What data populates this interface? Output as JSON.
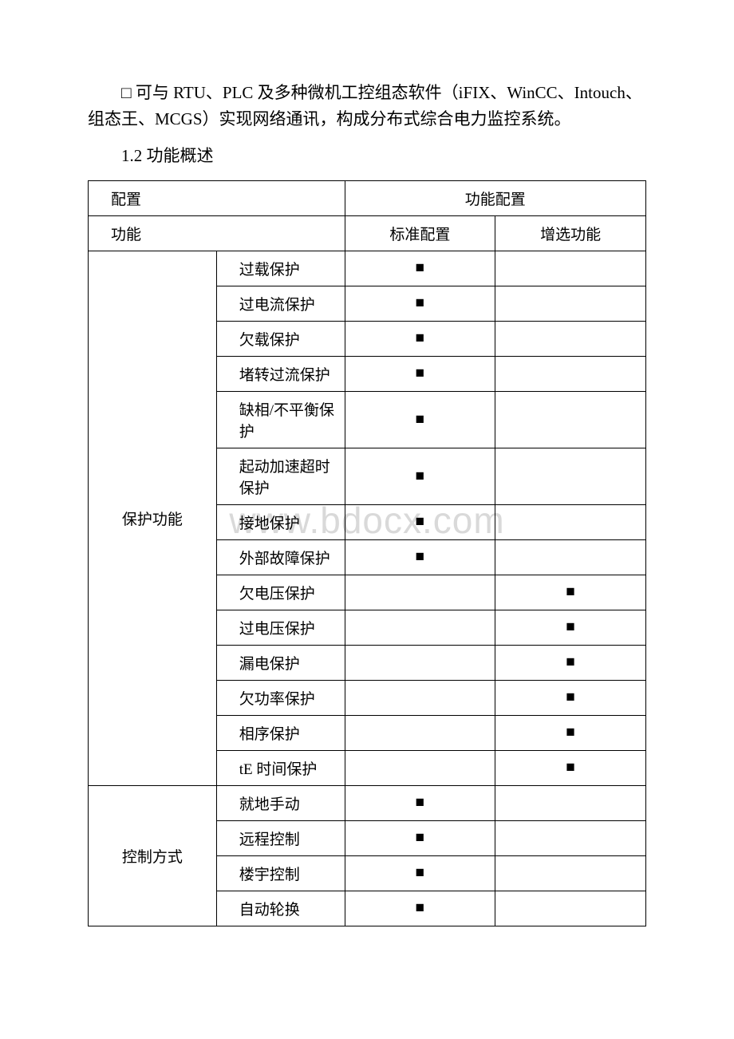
{
  "paragraph1": "□ 可与 RTU、PLC 及多种微机工控组态软件（iFIX、WinCC、Intouch、组态王、MCGS）实现网络通讯，构成分布式综合电力监控系统。",
  "sectionHeading": "1.2 功能概述",
  "watermark": "www.bdocx.com",
  "marker": "■",
  "table": {
    "header": {
      "configLabel": "配置",
      "funcConfig": "功能配置",
      "funcLabel": "功能",
      "standard": "标准配置",
      "optional": "增选功能"
    },
    "groups": [
      {
        "name": "保护功能",
        "rows": [
          {
            "feature": "过载保护",
            "standard": true,
            "optional": false
          },
          {
            "feature": "过电流保护",
            "standard": true,
            "optional": false
          },
          {
            "feature": "欠载保护",
            "standard": true,
            "optional": false
          },
          {
            "feature": "堵转过流保护",
            "standard": true,
            "optional": false
          },
          {
            "feature": "缺相/不平衡保护",
            "standard": true,
            "optional": false
          },
          {
            "feature": "起动加速超时保护",
            "standard": true,
            "optional": false
          },
          {
            "feature": "接地保护",
            "standard": true,
            "optional": false
          },
          {
            "feature": "外部故障保护",
            "standard": true,
            "optional": false
          },
          {
            "feature": "欠电压保护",
            "standard": false,
            "optional": true
          },
          {
            "feature": "过电压保护",
            "standard": false,
            "optional": true
          },
          {
            "feature": "漏电保护",
            "standard": false,
            "optional": true
          },
          {
            "feature": "欠功率保护",
            "standard": false,
            "optional": true
          },
          {
            "feature": "相序保护",
            "standard": false,
            "optional": true
          },
          {
            "feature": "tE 时间保护",
            "standard": false,
            "optional": true
          }
        ]
      },
      {
        "name": "控制方式",
        "rows": [
          {
            "feature": "就地手动",
            "standard": true,
            "optional": false
          },
          {
            "feature": "远程控制",
            "standard": true,
            "optional": false
          },
          {
            "feature": "楼宇控制",
            "standard": true,
            "optional": false
          },
          {
            "feature": "自动轮换",
            "standard": true,
            "optional": false
          }
        ]
      }
    ],
    "colWidths": {
      "c1": "23%",
      "c2": "23%",
      "c3": "27%",
      "c4": "27%"
    }
  }
}
